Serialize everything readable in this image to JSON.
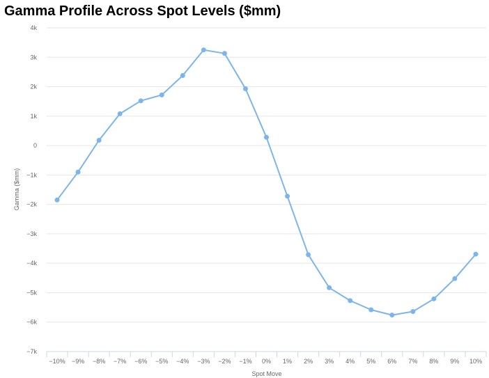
{
  "chart_data": {
    "type": "line",
    "title": "Gamma Profile Across Spot Levels ($mm)",
    "xlabel": "Spot Move",
    "ylabel": "Gamma ($mm)",
    "categories": [
      "-10%",
      "-9%",
      "-8%",
      "-7%",
      "-6%",
      "-5%",
      "-4%",
      "-3%",
      "-2%",
      "-1%",
      "0%",
      "1%",
      "2%",
      "3%",
      "4%",
      "5%",
      "6%",
      "7%",
      "8%",
      "9%",
      "10%"
    ],
    "x_tick_labels": [
      "−10%",
      "−9%",
      "−8%",
      "−7%",
      "−6%",
      "−5%",
      "−4%",
      "−3%",
      "−2%",
      "−1%",
      "0%",
      "1%",
      "2%",
      "3%",
      "4%",
      "5%",
      "6%",
      "7%",
      "8%",
      "9%",
      "10%"
    ],
    "series": [
      {
        "values": [
          -1850,
          -900,
          180,
          1080,
          1520,
          1720,
          2380,
          3250,
          3130,
          1930,
          280,
          -1720,
          -3710,
          -4830,
          -5270,
          -5580,
          -5760,
          -5640,
          -5210,
          -4520,
          -3690
        ],
        "color": "#7cb5ec"
      }
    ],
    "ylim": [
      -7000,
      4000
    ],
    "y_ticks": [
      -7000,
      -6000,
      -5000,
      -4000,
      -3000,
      -2000,
      -1000,
      0,
      1000,
      2000,
      3000,
      4000
    ],
    "y_tick_labels": [
      "−7k",
      "−6k",
      "−5k",
      "−4k",
      "−3k",
      "−2k",
      "−1k",
      "0",
      "1k",
      "2k",
      "3k",
      "4k"
    ],
    "grid": true,
    "legend": "none"
  }
}
